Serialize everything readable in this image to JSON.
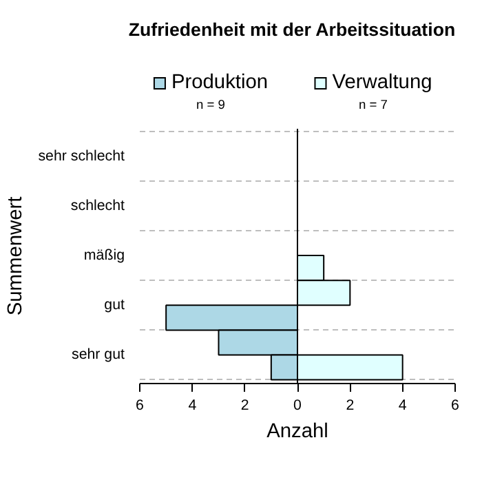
{
  "chart_data": {
    "type": "bar",
    "orientation": "horizontal",
    "title": "Zufriedenheit mit der Arbeitssituation",
    "xlabel": "Anzahl",
    "ylabel": "Summenwert",
    "categories": [
      null,
      "sehr schlecht",
      null,
      "schlecht",
      null,
      "mäßig",
      null,
      "gut",
      null,
      "sehr gut"
    ],
    "series": [
      {
        "name": "Produktion",
        "color": "#add8e6",
        "values": [
          null,
          null,
          null,
          null,
          null,
          null,
          null,
          -5,
          -3,
          -1
        ]
      },
      {
        "name": "Verwaltung",
        "color": "#e0ffff",
        "values": [
          null,
          null,
          null,
          null,
          null,
          1,
          2,
          null,
          null,
          4
        ]
      }
    ],
    "annotations": [
      "n = 9",
      "n = 7"
    ],
    "xlim": [
      -6,
      6
    ],
    "xticks": [
      {
        "value": -6,
        "label": "6"
      },
      {
        "value": -4,
        "label": "4"
      },
      {
        "value": -2,
        "label": "2"
      },
      0,
      2,
      4,
      6
    ],
    "ref_lines": [
      {
        "axis": "x",
        "value": 0,
        "color": "#000000",
        "line_style": "solid"
      }
    ],
    "grid": "y",
    "legend": "top"
  }
}
